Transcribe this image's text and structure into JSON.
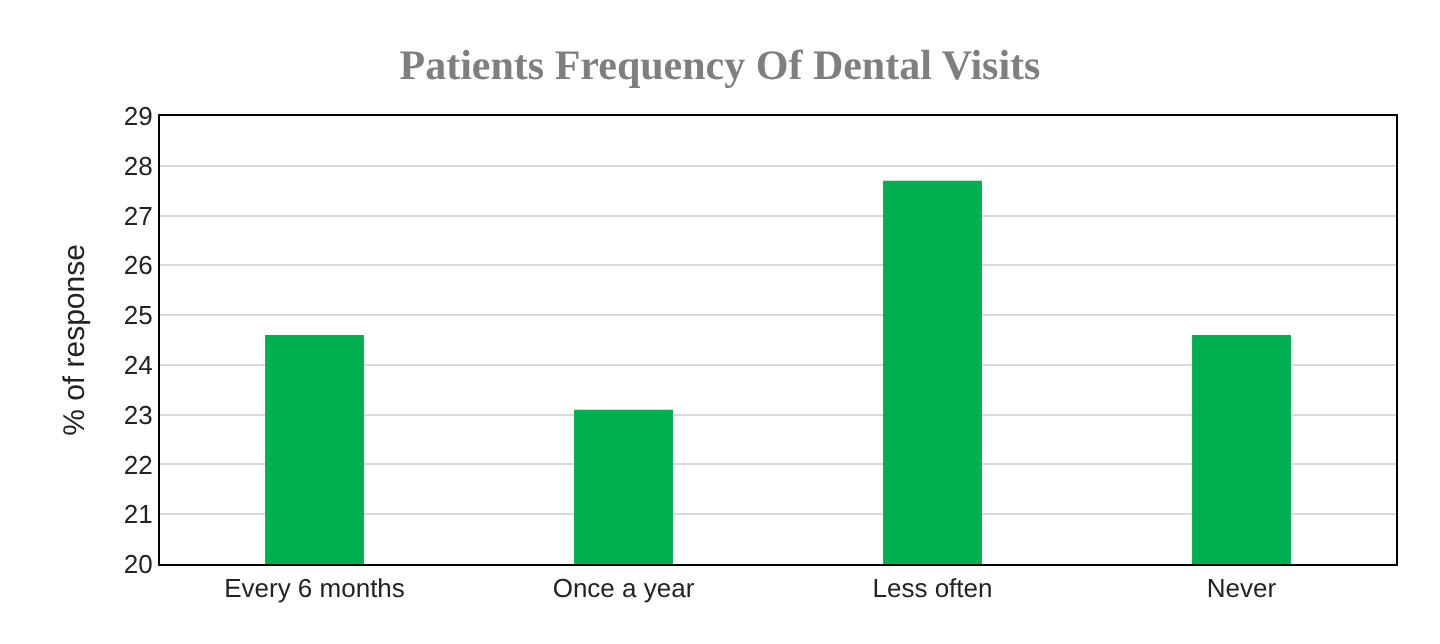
{
  "chart_data": {
    "type": "bar",
    "title": "Patients Frequency Of Dental Visits",
    "ylabel": "% of response",
    "categories": [
      "Every 6 months",
      "Once a year",
      "Less often",
      "Never"
    ],
    "values": [
      24.6,
      23.1,
      27.7,
      24.6
    ],
    "color": "#00b050",
    "ylim": [
      20,
      29
    ],
    "yticks": [
      20,
      21,
      22,
      23,
      24,
      25,
      26,
      27,
      28,
      29
    ],
    "grid": "y",
    "legend": false
  }
}
